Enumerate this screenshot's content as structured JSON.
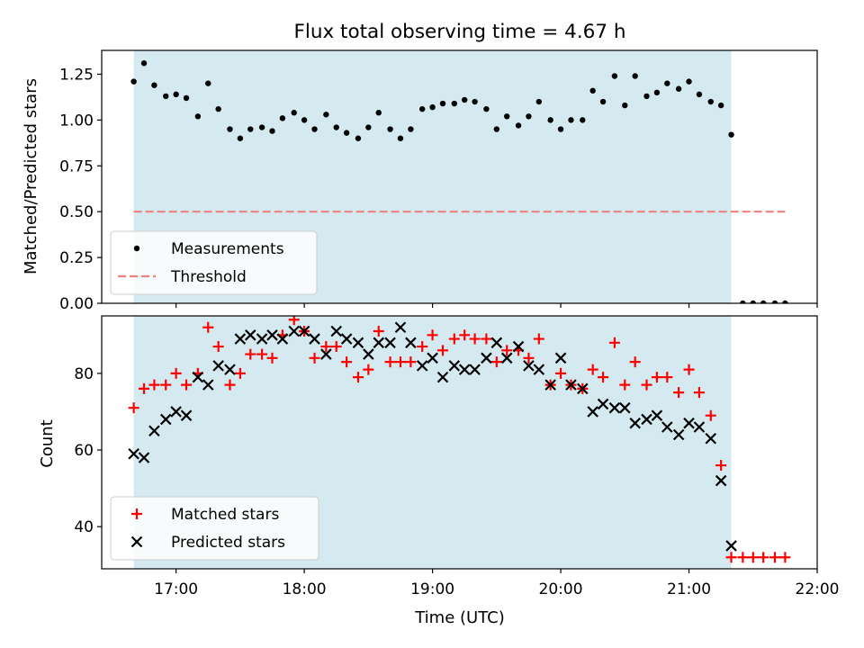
{
  "figure": {
    "title": "Flux total observing time = 4.67 h",
    "xlabel": "Time (UTC)"
  },
  "colors": {
    "observing_band": "#d4eaf0",
    "threshold": "#f08080",
    "matched": "#ff0000",
    "predicted": "#000000",
    "measurement": "#000000"
  },
  "chart_data": [
    {
      "type": "scatter",
      "ylabel": "Matched/Predicted stars",
      "xlim": [
        16.42,
        22.0
      ],
      "ylim": [
        0,
        1.38
      ],
      "yticks": [
        0.0,
        0.25,
        0.5,
        0.75,
        1.0,
        1.25
      ],
      "ytick_labels": [
        "0.00",
        "0.25",
        "0.50",
        "0.75",
        "1.00",
        "1.25"
      ],
      "observing_window": [
        16.67,
        21.33
      ],
      "legend_position": "lower-left",
      "series": [
        {
          "name": "Measurements",
          "marker": "dot",
          "x": [
            16.67,
            16.75,
            16.83,
            16.92,
            17.0,
            17.08,
            17.17,
            17.25,
            17.33,
            17.42,
            17.5,
            17.58,
            17.67,
            17.75,
            17.83,
            17.92,
            18.0,
            18.08,
            18.17,
            18.25,
            18.33,
            18.42,
            18.5,
            18.58,
            18.67,
            18.75,
            18.83,
            18.92,
            19.0,
            19.08,
            19.17,
            19.25,
            19.33,
            19.42,
            19.5,
            19.58,
            19.67,
            19.75,
            19.83,
            19.92,
            20.0,
            20.08,
            20.17,
            20.25,
            20.33,
            20.42,
            20.5,
            20.58,
            20.67,
            20.75,
            20.83,
            20.92,
            21.0,
            21.08,
            21.17,
            21.25,
            21.33,
            21.42,
            21.5,
            21.58,
            21.67,
            21.75
          ],
          "y": [
            1.21,
            1.31,
            1.19,
            1.13,
            1.14,
            1.12,
            1.02,
            1.2,
            1.06,
            0.95,
            0.9,
            0.95,
            0.96,
            0.94,
            1.01,
            1.04,
            1.0,
            0.95,
            1.03,
            0.96,
            0.93,
            0.9,
            0.96,
            1.04,
            0.95,
            0.9,
            0.95,
            1.06,
            1.07,
            1.09,
            1.09,
            1.11,
            1.1,
            1.06,
            0.95,
            1.02,
            0.97,
            1.02,
            1.1,
            1.0,
            0.95,
            1.0,
            1.0,
            1.16,
            1.1,
            1.24,
            1.08,
            1.24,
            1.13,
            1.15,
            1.2,
            1.17,
            1.21,
            1.14,
            1.1,
            1.08,
            0.92,
            0.0,
            0.0,
            0.0,
            0.0,
            0.0
          ]
        },
        {
          "name": "Threshold",
          "marker": "dashed-line",
          "x": [
            16.67,
            21.75
          ],
          "y": [
            0.5,
            0.5
          ]
        }
      ]
    },
    {
      "type": "scatter",
      "ylabel": "Count",
      "xlim": [
        16.42,
        22.0
      ],
      "ylim": [
        29,
        95
      ],
      "yticks": [
        40,
        60,
        80
      ],
      "ytick_labels": [
        "40",
        "60",
        "80"
      ],
      "xticks": [
        17,
        18,
        19,
        20,
        21,
        22
      ],
      "xtick_labels": [
        "17:00",
        "18:00",
        "19:00",
        "20:00",
        "21:00",
        "22:00"
      ],
      "observing_window": [
        16.67,
        21.33
      ],
      "legend_position": "lower-left",
      "series": [
        {
          "name": "Matched stars",
          "marker": "plus",
          "x": [
            16.67,
            16.75,
            16.83,
            16.92,
            17.0,
            17.08,
            17.17,
            17.25,
            17.33,
            17.42,
            17.5,
            17.58,
            17.67,
            17.75,
            17.83,
            17.92,
            18.0,
            18.08,
            18.17,
            18.25,
            18.33,
            18.42,
            18.5,
            18.58,
            18.67,
            18.75,
            18.83,
            18.92,
            19.0,
            19.08,
            19.17,
            19.25,
            19.33,
            19.42,
            19.5,
            19.58,
            19.67,
            19.75,
            19.83,
            19.92,
            20.0,
            20.08,
            20.17,
            20.25,
            20.33,
            20.42,
            20.5,
            20.58,
            20.67,
            20.75,
            20.83,
            20.92,
            21.0,
            21.08,
            21.17,
            21.25,
            21.33,
            21.42,
            21.5,
            21.58,
            21.67,
            21.75
          ],
          "y": [
            71,
            76,
            77,
            77,
            80,
            77,
            80,
            92,
            87,
            77,
            80,
            85,
            85,
            84,
            90,
            94,
            91,
            84,
            87,
            87,
            83,
            79,
            81,
            91,
            83,
            83,
            83,
            87,
            90,
            86,
            89,
            90,
            89,
            89,
            83,
            86,
            86,
            84,
            89,
            77,
            80,
            77,
            76,
            81,
            79,
            88,
            77,
            83,
            77,
            79,
            79,
            75,
            81,
            75,
            69,
            56,
            32,
            32,
            32,
            32,
            32,
            32
          ]
        },
        {
          "name": "Predicted stars",
          "marker": "x",
          "x": [
            16.67,
            16.75,
            16.83,
            16.92,
            17.0,
            17.08,
            17.17,
            17.25,
            17.33,
            17.42,
            17.5,
            17.58,
            17.67,
            17.75,
            17.83,
            17.92,
            18.0,
            18.08,
            18.17,
            18.25,
            18.33,
            18.42,
            18.5,
            18.58,
            18.67,
            18.75,
            18.83,
            18.92,
            19.0,
            19.08,
            19.17,
            19.25,
            19.33,
            19.42,
            19.5,
            19.58,
            19.67,
            19.75,
            19.83,
            19.92,
            20.0,
            20.08,
            20.17,
            20.25,
            20.33,
            20.42,
            20.5,
            20.58,
            20.67,
            20.75,
            20.83,
            20.92,
            21.0,
            21.08,
            21.17,
            21.25,
            21.33
          ],
          "y": [
            59,
            58,
            65,
            68,
            70,
            69,
            79,
            77,
            82,
            81,
            89,
            90,
            89,
            90,
            89,
            91,
            91,
            89,
            85,
            91,
            89,
            88,
            85,
            88,
            88,
            92,
            88,
            82,
            84,
            79,
            82,
            81,
            81,
            84,
            88,
            84,
            87,
            82,
            81,
            77,
            84,
            77,
            76,
            70,
            72,
            71,
            71,
            67,
            68,
            69,
            66,
            64,
            67,
            66,
            63,
            52,
            35
          ]
        }
      ]
    }
  ]
}
